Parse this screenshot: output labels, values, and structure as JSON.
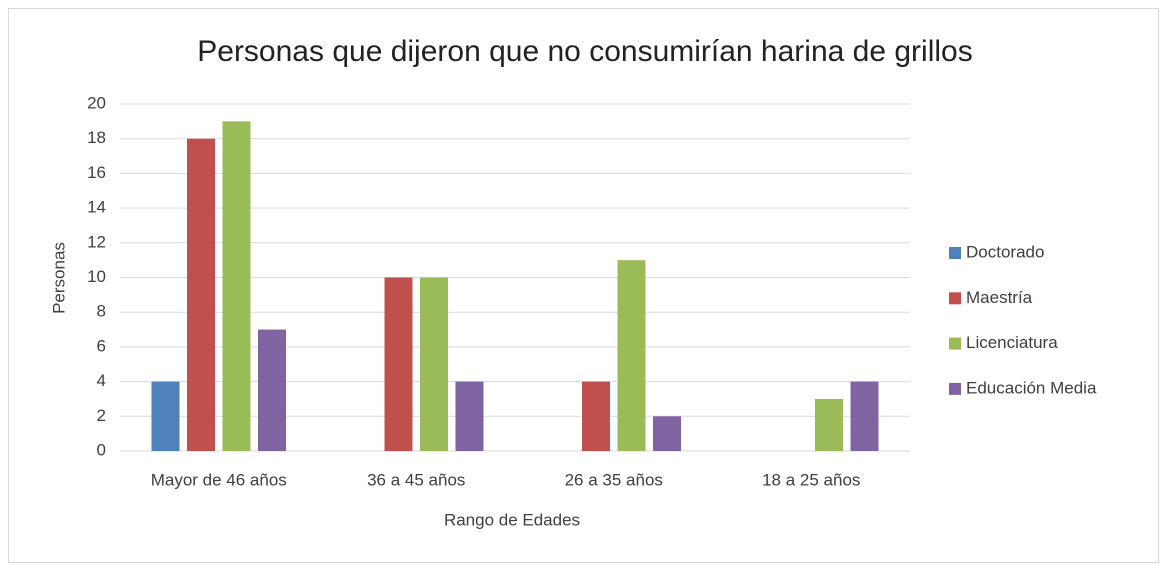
{
  "chart_data": {
    "type": "bar",
    "title": "Personas que dijeron que no consumirían harina de grillos",
    "xlabel": "Rango de Edades",
    "ylabel": "Personas",
    "categories": [
      "Mayor de 46 años",
      "36 a 45 años",
      "26 a 35 años",
      "18 a 25 años"
    ],
    "series": [
      {
        "name": "Doctorado",
        "color": "#4f81bd",
        "values": [
          4,
          0,
          0,
          0
        ]
      },
      {
        "name": "Maestría",
        "color": "#c0504d",
        "values": [
          18,
          10,
          4,
          0
        ]
      },
      {
        "name": "Licenciatura",
        "color": "#9bbb59",
        "values": [
          19,
          10,
          11,
          3
        ]
      },
      {
        "name": "Educación Media",
        "color": "#8064a2",
        "values": [
          7,
          4,
          2,
          4
        ]
      }
    ],
    "ylim": [
      0,
      20
    ],
    "yticks": [
      0,
      2,
      4,
      6,
      8,
      10,
      12,
      14,
      16,
      18,
      20
    ],
    "grid": true,
    "legend": "right"
  }
}
